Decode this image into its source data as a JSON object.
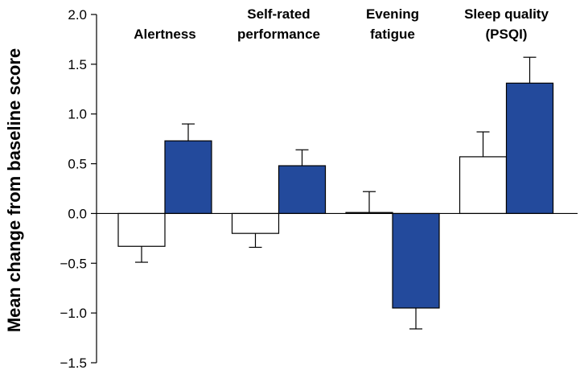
{
  "chart_data": {
    "type": "bar",
    "title": "",
    "xlabel": "",
    "ylabel": "Mean change from baseline score",
    "ylim": [
      -1.5,
      2.0
    ],
    "yticks": [
      2.0,
      1.5,
      1.0,
      0.5,
      0.0,
      -0.5,
      -1.0,
      -1.5
    ],
    "ytick_labels": [
      "2.0",
      "1.5",
      "1.0",
      "0.5",
      "0.0",
      "−0.5",
      "−1.0",
      "−1.5"
    ],
    "grid": false,
    "legend": "none",
    "categories": [
      {
        "lines": [
          "Alertness"
        ]
      },
      {
        "lines": [
          "Self-rated",
          "performance"
        ]
      },
      {
        "lines": [
          "Evening",
          "fatigue"
        ]
      },
      {
        "lines": [
          "Sleep quality",
          "(PSQI)"
        ]
      }
    ],
    "series": [
      {
        "fill": "#ffffff",
        "stroke": "#000000",
        "values": [
          -0.33,
          -0.2,
          0.01,
          0.57
        ],
        "errors": [
          0.16,
          0.14,
          0.21,
          0.25
        ]
      },
      {
        "fill": "#234a9c",
        "stroke": "#000000",
        "values": [
          0.73,
          0.48,
          -0.95,
          1.31
        ],
        "errors": [
          0.17,
          0.16,
          0.21,
          0.26
        ]
      }
    ]
  }
}
